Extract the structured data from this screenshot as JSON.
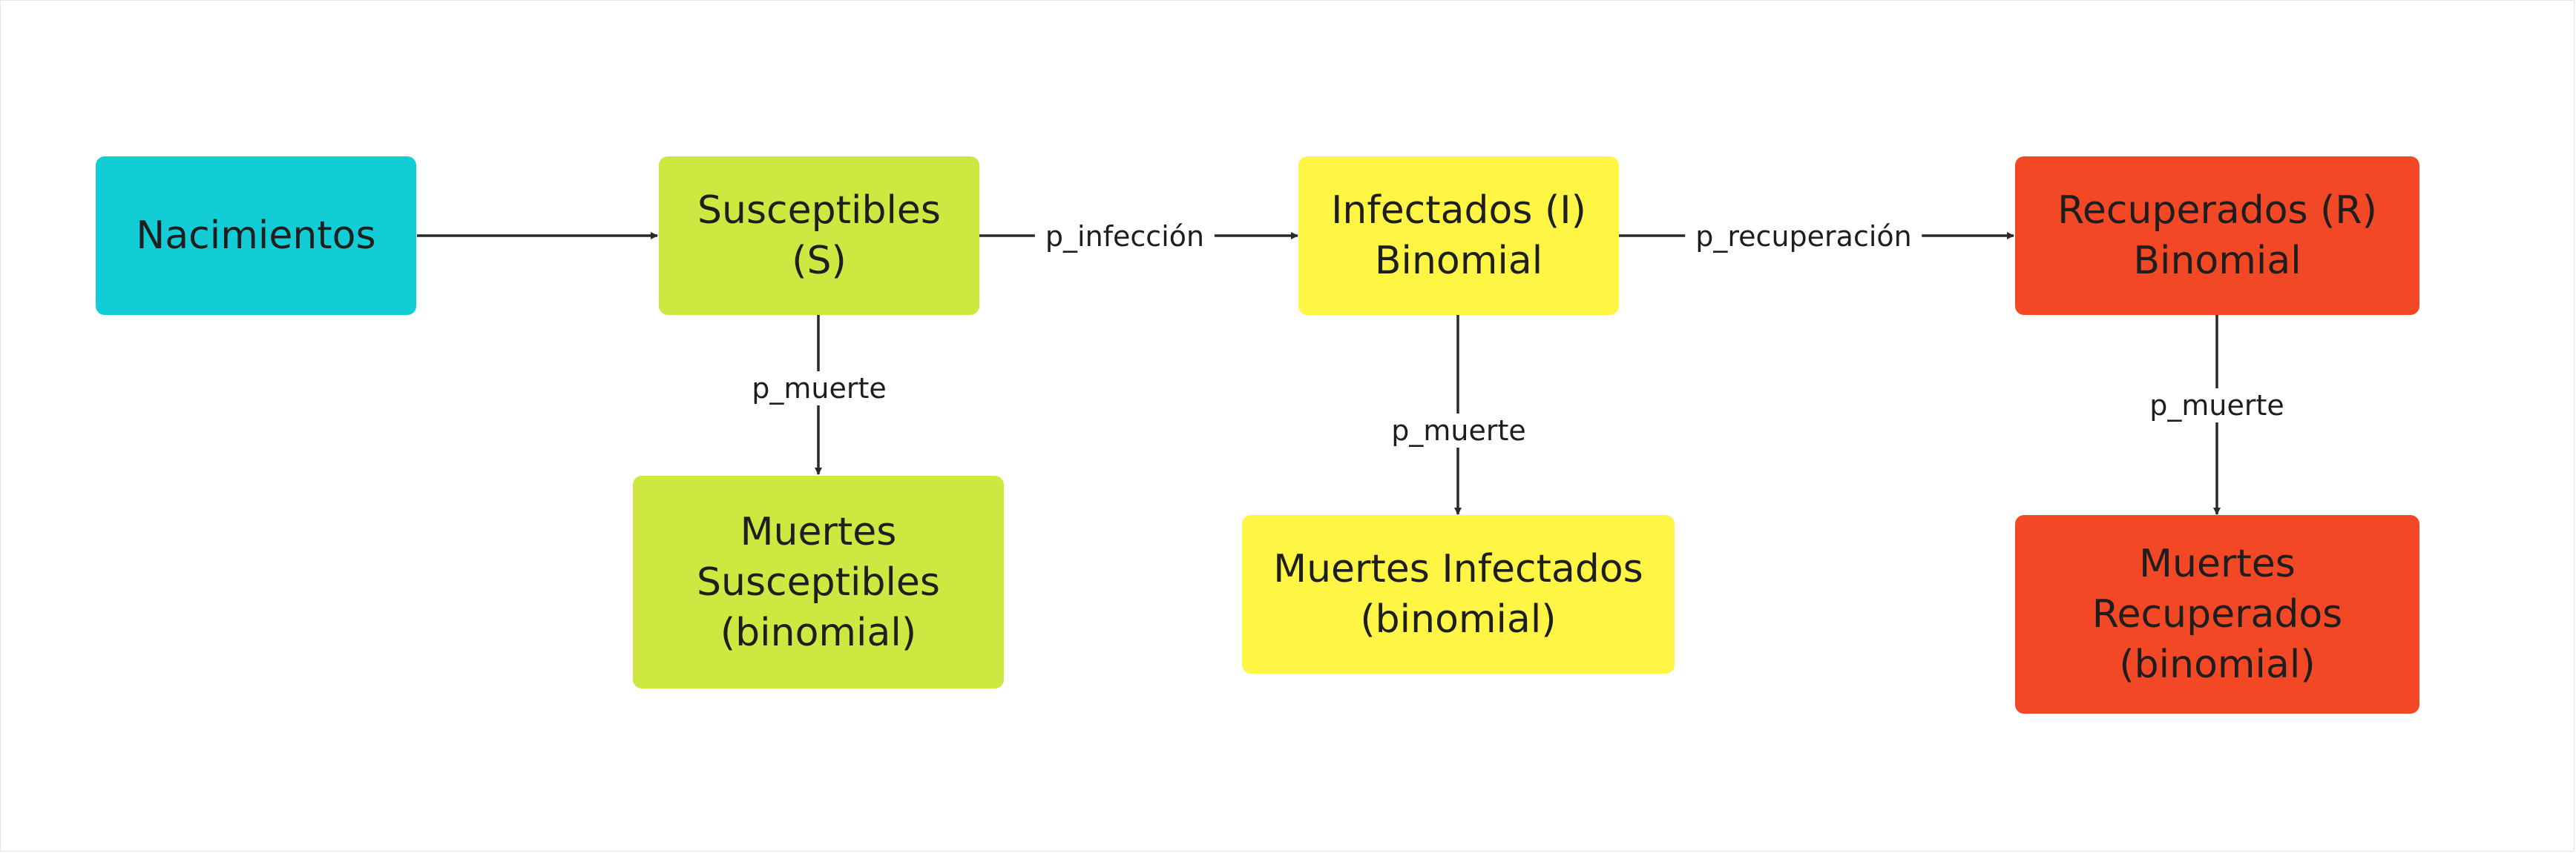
{
  "colors": {
    "cyan": "#13cdd6",
    "lime": "#cfe841",
    "yellow": "#fff545",
    "red": "#f24826",
    "line": "#2a2a2a"
  },
  "nodes": {
    "nacimientos": {
      "label": "Nacimientos"
    },
    "susceptibles": {
      "label": "Susceptibles\n(S)"
    },
    "infectados": {
      "label": "Infectados (I)\nBinomial"
    },
    "recuperados": {
      "label": "Recuperados (R)\nBinomial"
    },
    "muertes_susceptibles": {
      "label": "Muertes\nSusceptibles\n(binomial)"
    },
    "muertes_infectados": {
      "label": "Muertes Infectados\n(binomial)"
    },
    "muertes_recuperados": {
      "label": "Muertes\nRecuperados\n(binomial)"
    }
  },
  "edges": {
    "infeccion": "p_infección",
    "recuperacion": "p_recuperación",
    "muerte_s": "p_muerte",
    "muerte_i": "p_muerte",
    "muerte_r": "p_muerte"
  }
}
